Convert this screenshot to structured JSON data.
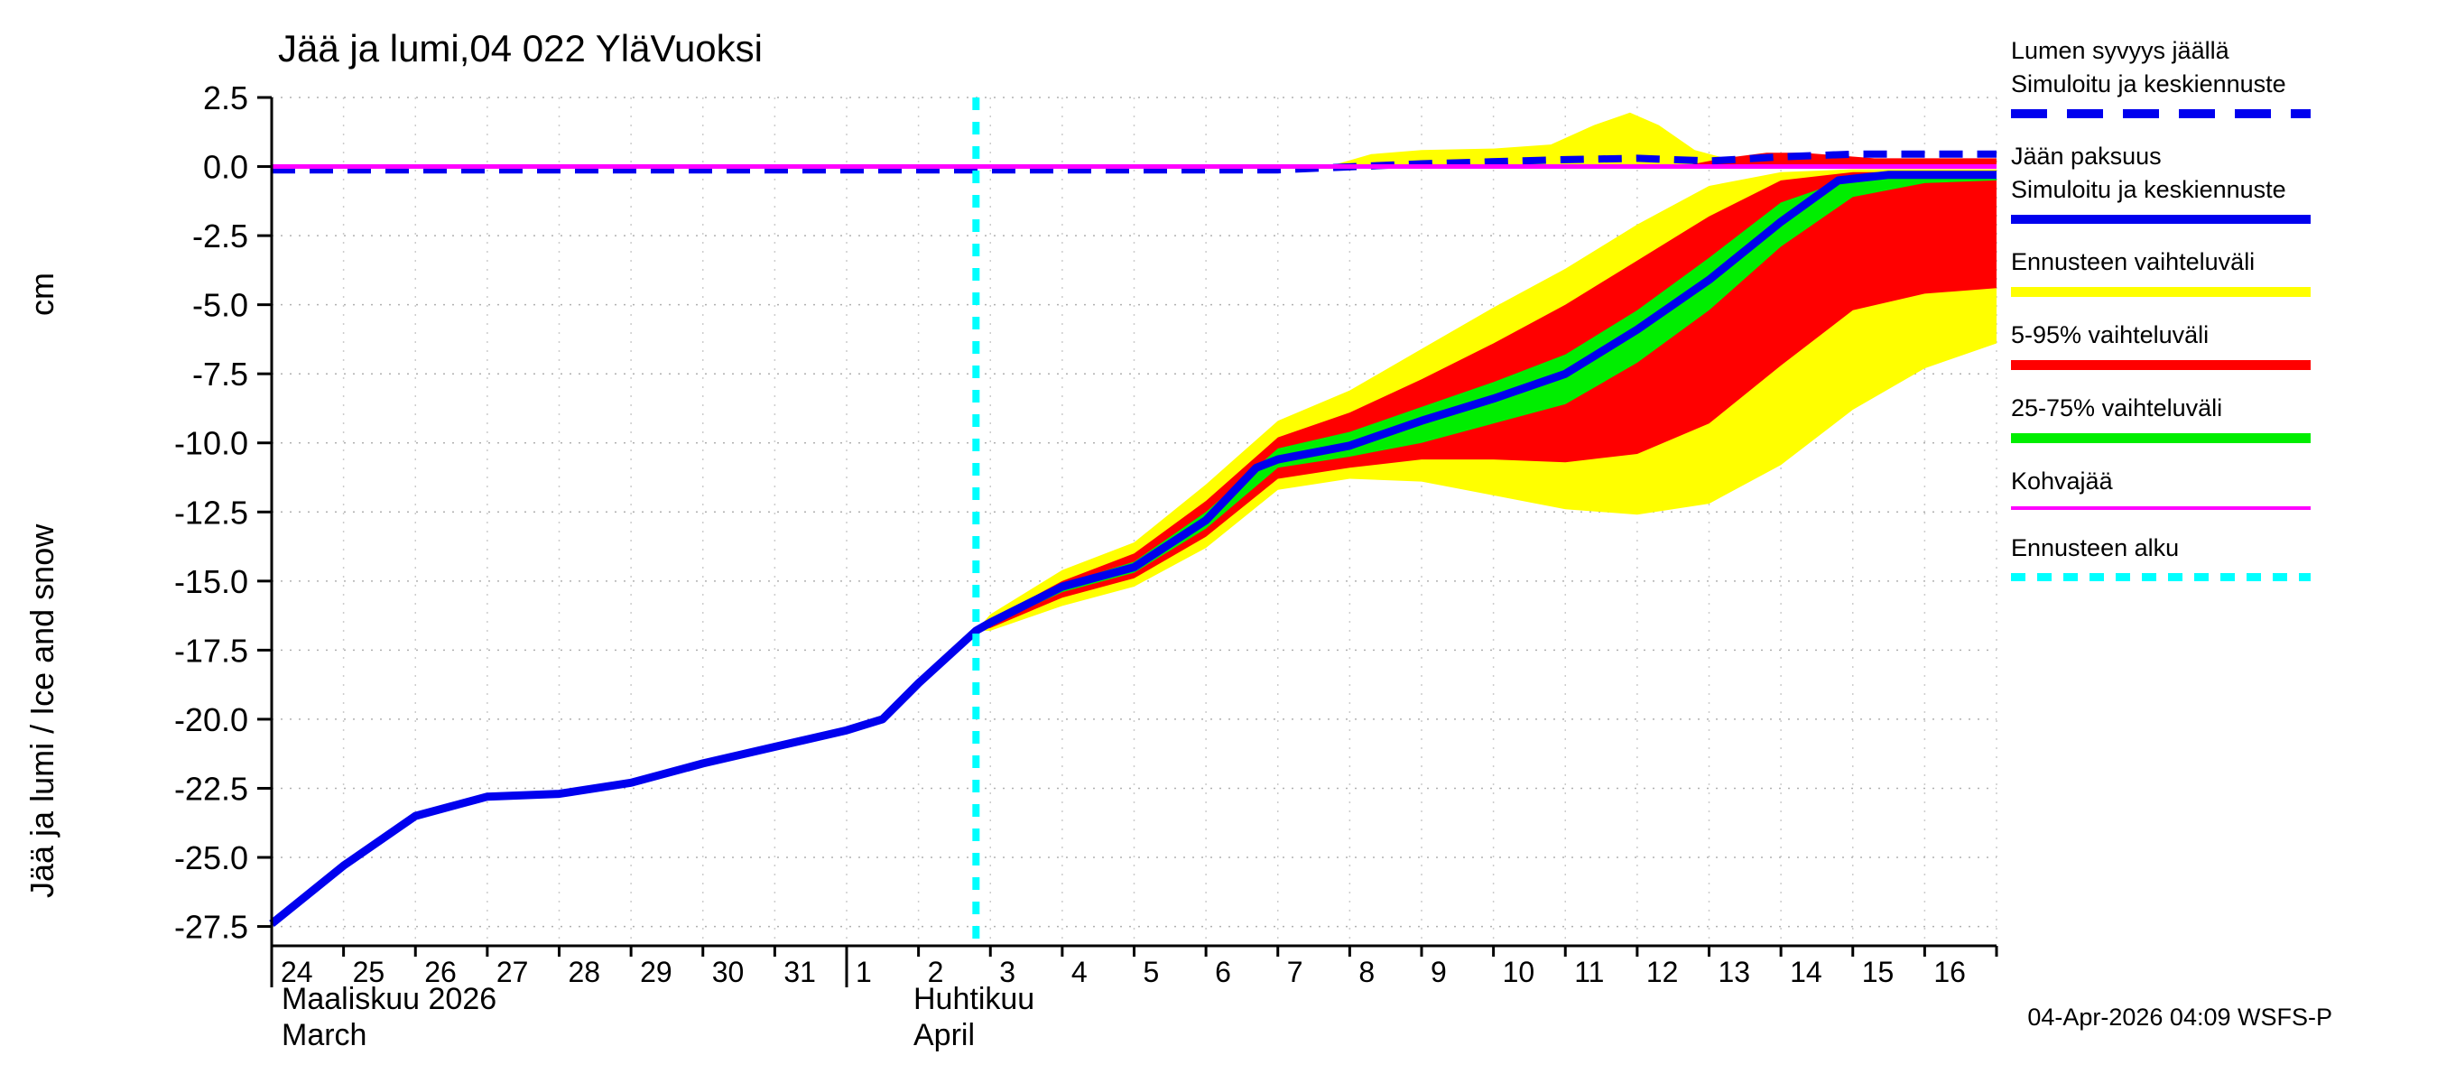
{
  "page": {
    "title": "Jää ja lumi,04 022 YläVuoksi",
    "timestamp": "04-Apr-2026 04:09 WSFS-P"
  },
  "axis_labels": {
    "y_main": "Jää ja lumi / Ice and snow",
    "y_unit": "cm",
    "month1_fi": "Maaliskuu 2026",
    "month1_en": "March",
    "month2_fi": "Huhtikuu",
    "month2_en": "April"
  },
  "legend": {
    "entries": [
      {
        "key": "snow-depth",
        "lines": [
          "Lumen syvyys jäällä",
          "Simuloitu ja keskiennuste"
        ],
        "swatch": "blue-dashed"
      },
      {
        "key": "ice-thickness",
        "lines": [
          "Jään paksuus",
          "Simuloitu ja keskiennuste"
        ],
        "swatch": "blue-solid"
      },
      {
        "key": "forecast-range",
        "lines": [
          "Ennusteen vaihteluväli"
        ],
        "swatch": "yellow"
      },
      {
        "key": "range-5-95",
        "lines": [
          "5-95% vaihteluväli"
        ],
        "swatch": "red"
      },
      {
        "key": "range-25-75",
        "lines": [
          "25-75% vaihteluväli"
        ],
        "swatch": "green"
      },
      {
        "key": "kohvajaa",
        "lines": [
          "Kohvajää"
        ],
        "swatch": "magenta"
      },
      {
        "key": "forecast-start",
        "lines": [
          "Ennusteen alku"
        ],
        "swatch": "cyan-dashed"
      }
    ]
  },
  "colors": {
    "ice_line": "#0000ee",
    "snow_line": "#0000ee",
    "forecast_range": "#ffff00",
    "range_5_95": "#ff0000",
    "range_25_75": "#00ee00",
    "kohvajaa": "#ff00ff",
    "forecast_start": "#00ffff",
    "grid": "#b0b0b0",
    "axis": "#000000"
  },
  "chart_data": {
    "type": "line",
    "title": "Jää ja lumi,04 022 YläVuoksi",
    "ylabel": "Jää ja lumi / Ice and snow",
    "y_unit": "cm",
    "xlabel_months": [
      "Maaliskuu 2026 / March",
      "Huhtikuu / April"
    ],
    "xlim": [
      0,
      24
    ],
    "ylim": [
      -28.2,
      2.5
    ],
    "ytick_values": [
      2.5,
      0.0,
      -2.5,
      -5.0,
      -7.5,
      -10.0,
      -12.5,
      -15.0,
      -17.5,
      -20.0,
      -22.5,
      -25.0,
      -27.5
    ],
    "ytick_labels": [
      "2.5",
      "0.0",
      "-2.5",
      "-5.0",
      "-7.5",
      "-10.0",
      "-12.5",
      "-15.0",
      "-17.5",
      "-20.0",
      "-22.5",
      "-25.0",
      "-27.5"
    ],
    "xtick_days": [
      0,
      1,
      2,
      3,
      4,
      5,
      6,
      7,
      8,
      9,
      10,
      11,
      12,
      13,
      14,
      15,
      16,
      17,
      18,
      19,
      20,
      21,
      22,
      23
    ],
    "xtick_labels": [
      "24",
      "25",
      "26",
      "27",
      "28",
      "29",
      "30",
      "31",
      "1",
      "2",
      "3",
      "4",
      "5",
      "6",
      "7",
      "8",
      "9",
      "10",
      "11",
      "12",
      "13",
      "14",
      "15",
      "16"
    ],
    "month_start_days": [
      0,
      8
    ],
    "forecast_start_day": 9.8,
    "grid": true,
    "legend_position": "right",
    "series": {
      "ice_thickness": {
        "name": "Jään paksuus - Simuloitu ja keskiennuste",
        "color": "#0000ee",
        "x": [
          0,
          1,
          2,
          3,
          4,
          5,
          6,
          7,
          8,
          8.5,
          9,
          9.8,
          10,
          11,
          12,
          13,
          13.7,
          14,
          15,
          16,
          17,
          18,
          19,
          20,
          21,
          21.8,
          22.5,
          23,
          24
        ],
        "y": [
          -27.4,
          -25.3,
          -23.5,
          -22.8,
          -22.7,
          -22.3,
          -21.6,
          -21.0,
          -20.4,
          -20.0,
          -18.7,
          -16.8,
          -16.5,
          -15.2,
          -14.5,
          -12.8,
          -10.9,
          -10.6,
          -10.1,
          -9.2,
          -8.4,
          -7.5,
          -5.9,
          -4.1,
          -2.0,
          -0.5,
          -0.3,
          -0.3,
          -0.3
        ]
      },
      "snow_depth": {
        "name": "Lumen syvyys jäällä - Simuloitu ja keskiennuste",
        "color": "#0000ee",
        "x": [
          0,
          14,
          16,
          18,
          19,
          20,
          21,
          22,
          24
        ],
        "y": [
          -0.12,
          -0.12,
          0.1,
          0.25,
          0.3,
          0.2,
          0.35,
          0.45,
          0.45
        ]
      }
    },
    "bands": [
      {
        "name": "forecast-range-yellow",
        "color": "#ffff00",
        "x": [
          9.8,
          10,
          11,
          12,
          13,
          14,
          15,
          16,
          17,
          18,
          19,
          20,
          21,
          22,
          23,
          24
        ],
        "top": [
          -16.8,
          -16.2,
          -14.6,
          -13.6,
          -11.5,
          -9.2,
          -8.1,
          -6.6,
          -5.1,
          -3.7,
          -2.1,
          -0.7,
          -0.2,
          -0.1,
          -0.1,
          -0.1
        ],
        "bottom": [
          -16.8,
          -16.8,
          -15.9,
          -15.2,
          -13.8,
          -11.7,
          -11.3,
          -11.4,
          -11.9,
          -12.4,
          -12.6,
          -12.2,
          -10.8,
          -8.8,
          -7.3,
          -6.4
        ]
      },
      {
        "name": "range-5-95-red",
        "color": "#ff0000",
        "x": [
          9.8,
          10,
          11,
          12,
          13,
          14,
          15,
          16,
          17,
          18,
          19,
          20,
          21,
          22,
          23,
          24
        ],
        "top": [
          -16.8,
          -16.4,
          -15.0,
          -14.0,
          -12.1,
          -9.8,
          -8.9,
          -7.7,
          -6.4,
          -5.0,
          -3.4,
          -1.8,
          -0.5,
          -0.2,
          -0.2,
          -0.2
        ],
        "bottom": [
          -16.8,
          -16.7,
          -15.6,
          -14.9,
          -13.4,
          -11.3,
          -10.9,
          -10.6,
          -10.6,
          -10.7,
          -10.4,
          -9.3,
          -7.2,
          -5.2,
          -4.6,
          -4.4
        ]
      },
      {
        "name": "range-25-75-green",
        "color": "#00ee00",
        "x": [
          9.8,
          10,
          11,
          12,
          13,
          14,
          15,
          16,
          17,
          18,
          19,
          20,
          21,
          22,
          23,
          24
        ],
        "top": [
          -16.8,
          -16.5,
          -15.1,
          -14.3,
          -12.5,
          -10.2,
          -9.6,
          -8.7,
          -7.8,
          -6.8,
          -5.2,
          -3.3,
          -1.3,
          -0.4,
          -0.3,
          -0.3
        ],
        "bottom": [
          -16.8,
          -16.6,
          -15.4,
          -14.7,
          -13.1,
          -10.9,
          -10.5,
          -10.0,
          -9.3,
          -8.6,
          -7.1,
          -5.2,
          -2.9,
          -1.1,
          -0.6,
          -0.5
        ]
      },
      {
        "name": "snow-forecast-range-yellow",
        "color": "#ffff00",
        "x": [
          14.7,
          15.3,
          16,
          17,
          17.8,
          18.4,
          18.9,
          19.3,
          19.8,
          20.3,
          21,
          24
        ],
        "top": [
          0.0,
          0.45,
          0.6,
          0.65,
          0.8,
          1.5,
          1.95,
          1.5,
          0.6,
          0.25,
          0.2,
          0.2
        ],
        "bottom": [
          0,
          0,
          0,
          0,
          0,
          0,
          0,
          0,
          0,
          0,
          0,
          0
        ]
      },
      {
        "name": "snow-range-5-95-red",
        "color": "#ff0000",
        "x": [
          19.6,
          20.2,
          20.8,
          21.3,
          21.8,
          22.3,
          24
        ],
        "top": [
          0.0,
          0.3,
          0.5,
          0.5,
          0.4,
          0.3,
          0.3
        ],
        "bottom": [
          0,
          0,
          0,
          0,
          0,
          0,
          0
        ]
      }
    ],
    "hlines": [
      {
        "name": "kohvajaa",
        "y": 0,
        "color": "#ff00ff"
      }
    ]
  }
}
